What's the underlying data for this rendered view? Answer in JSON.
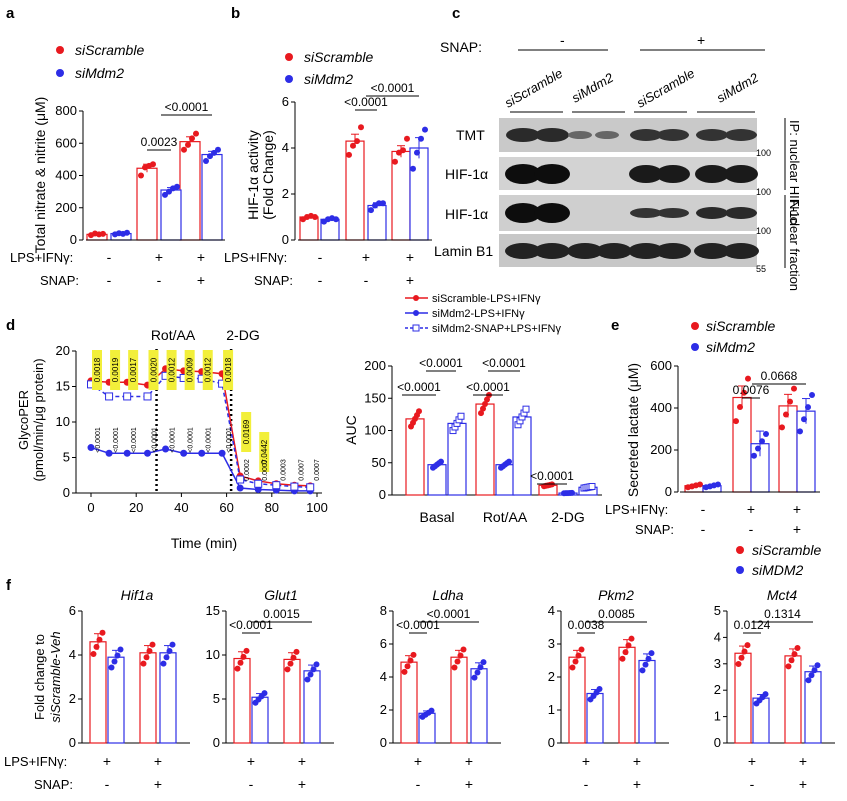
{
  "panels": {
    "a": "a",
    "b": "b",
    "c": "c",
    "d": "d",
    "e": "e",
    "f": "f"
  },
  "colors": {
    "scramble": "#e8191f",
    "mdm2": "#2d2de6",
    "grid": "#000000",
    "highlight": "#f2ef3a"
  },
  "groups": {
    "lps": "LPS+IFNγ:",
    "snap": "SNAP:",
    "plus": "+",
    "minus": "-"
  },
  "legend": {
    "scramble": "siScramble",
    "mdm2": "siMdm2",
    "mdm2_upper": "siMDM2"
  },
  "chart_data": [
    {
      "panel": "a",
      "type": "bar",
      "ylabel": "Total nitrate & nitrite (μM)",
      "ylim": [
        0,
        800
      ],
      "yticks": [
        0,
        200,
        400,
        600,
        800
      ],
      "lps": [
        "-",
        "+",
        "+"
      ],
      "snap": [
        "-",
        "-",
        "+"
      ],
      "series": [
        {
          "name": "siScramble",
          "values": [
            35,
            445,
            610
          ],
          "errors": [
            8,
            25,
            30
          ],
          "points": [
            [
              30,
              40,
              35,
              38
            ],
            [
              400,
              450,
              460,
              470
            ],
            [
              560,
              590,
              630,
              660
            ]
          ]
        },
        {
          "name": "siMdm2",
          "values": [
            40,
            310,
            530
          ],
          "errors": [
            6,
            15,
            20
          ],
          "points": [
            [
              35,
              42,
              38,
              45
            ],
            [
              280,
              300,
              320,
              330
            ],
            [
              490,
              520,
              540,
              560
            ]
          ]
        }
      ],
      "sig": [
        {
          "label": "0.0023"
        },
        {
          "label": "<0.0001"
        }
      ]
    },
    {
      "panel": "b",
      "type": "bar",
      "ylabel": "HIF-1α activity\n(Fold Change)",
      "ylim": [
        0,
        6
      ],
      "yticks": [
        0,
        2,
        4,
        6
      ],
      "lps": [
        "-",
        "+",
        "+"
      ],
      "snap": [
        "-",
        "-",
        "+"
      ],
      "series": [
        {
          "name": "siScramble",
          "values": [
            1.0,
            4.3,
            3.85
          ],
          "errors": [
            0.08,
            0.3,
            0.25
          ],
          "points": [
            [
              0.9,
              1.0,
              1.05,
              1.0
            ],
            [
              3.7,
              4.1,
              4.3,
              4.9
            ],
            [
              3.4,
              3.8,
              3.9,
              4.4
            ]
          ]
        },
        {
          "name": "siMdm2",
          "values": [
            0.9,
            1.5,
            4.0
          ],
          "errors": [
            0.05,
            0.12,
            0.45
          ],
          "points": [
            [
              0.8,
              0.9,
              0.95,
              0.9
            ],
            [
              1.3,
              1.5,
              1.6,
              1.6
            ],
            [
              3.1,
              3.8,
              4.4,
              4.8
            ]
          ]
        }
      ],
      "sig": [
        {
          "label": "<0.0001"
        },
        {
          "label": "<0.0001"
        }
      ]
    },
    {
      "panel": "d",
      "type": "line",
      "title_marks": [
        "Rot/AA",
        "2-DG"
      ],
      "xlabel": "Time (min)",
      "ylabel": "GlycoPER\n(pmol/min/μg protein)",
      "xlim": [
        -5,
        100
      ],
      "ylim": [
        0,
        20
      ],
      "xticks": [
        0,
        20,
        40,
        60,
        80,
        100
      ],
      "yticks": [
        0,
        5,
        10,
        15,
        20
      ],
      "x": [
        0,
        8,
        16,
        25,
        33,
        41,
        49,
        58,
        66,
        74,
        82,
        90,
        97
      ],
      "series": [
        {
          "name": "siScramble-LPS+IFNγ",
          "values": [
            15.8,
            15.6,
            15.6,
            15.2,
            17.5,
            17.2,
            17.1,
            16.8,
            2.4,
            1.7,
            1.3,
            1.1,
            1.0
          ]
        },
        {
          "name": "siMdm2-LPS+IFNγ",
          "values": [
            6.4,
            5.6,
            5.6,
            5.6,
            6.2,
            5.6,
            5.6,
            5.6,
            0.7,
            0.5,
            0.4,
            0.3,
            0.3
          ]
        },
        {
          "name": "siMdm2-SNAP+LPS+IFNγ",
          "values": [
            15.3,
            13.6,
            13.6,
            13.6,
            16.5,
            16.2,
            16.1,
            15.4,
            1.9,
            1.3,
            1.1,
            0.9,
            0.8
          ]
        }
      ],
      "pvals_top": [
        "0.0018",
        "0.0019",
        "0.0017",
        "0.0020",
        "0.0012",
        "0.0009",
        "0.0012",
        "0.0018",
        "0.0169",
        "0.0442"
      ],
      "pvals_bottom": [
        "<0.0001",
        "<0.0001",
        "<0.0001",
        "<0.0001",
        "<0.0001",
        "<0.0001",
        "<0.0001",
        "<0.0001",
        "0.0002",
        "0.0007",
        "0.0003",
        "0.0007",
        "0.0007"
      ]
    },
    {
      "panel": "d-auc",
      "type": "bar",
      "ylabel": "AUC",
      "ylim": [
        0,
        200
      ],
      "yticks": [
        0,
        50,
        100,
        150,
        200
      ],
      "categories": [
        "Basal",
        "Rot/AA",
        "2-DG"
      ],
      "series": [
        {
          "name": "siScramble-LPS+IFNγ",
          "values": [
            118,
            141,
            15
          ]
        },
        {
          "name": "siMdm2-LPS+IFNγ",
          "values": [
            47,
            47,
            3
          ]
        },
        {
          "name": "siMdm2-SNAP+LPS+IFNγ",
          "values": [
            111,
            121,
            12
          ]
        }
      ],
      "sig": [
        "<0.0001",
        "<0.0001",
        "<0.0001",
        "<0.0001",
        "<0.0001"
      ]
    },
    {
      "panel": "e",
      "type": "bar",
      "ylabel": "Secreted lactate (μM)",
      "ylim": [
        0,
        600
      ],
      "yticks": [
        0,
        200,
        400,
        600
      ],
      "lps": [
        "-",
        "+",
        "+"
      ],
      "snap": [
        "-",
        "-",
        "+"
      ],
      "series": [
        {
          "name": "siScramble",
          "values": [
            30,
            450,
            410
          ],
          "errors": [
            5,
            55,
            55
          ]
        },
        {
          "name": "siMdm2",
          "values": [
            30,
            230,
            385
          ],
          "errors": [
            5,
            60,
            60
          ]
        }
      ],
      "sig": [
        {
          "label": "0.0076"
        },
        {
          "label": "0.0668"
        }
      ]
    },
    {
      "panel": "f",
      "type": "bar",
      "ylabel": "Fold change to\nsiScramble-Veh",
      "subplots": [
        {
          "gene": "Hif1a",
          "ylim": [
            0,
            6
          ],
          "yticks": [
            0,
            2,
            4,
            6
          ],
          "siScramble": [
            4.6,
            4.1
          ],
          "siMdm2": [
            3.9,
            4.1
          ],
          "sig": []
        },
        {
          "gene": "Glut1",
          "ylim": [
            0,
            15
          ],
          "yticks": [
            0,
            5,
            10,
            15
          ],
          "siScramble": [
            9.6,
            9.5
          ],
          "siMdm2": [
            5.2,
            8.2
          ],
          "sig": [
            "<0.0001",
            "0.0015"
          ]
        },
        {
          "gene": "Ldha",
          "ylim": [
            0,
            8
          ],
          "yticks": [
            0,
            2,
            4,
            6,
            8
          ],
          "siScramble": [
            4.9,
            5.2
          ],
          "siMdm2": [
            1.8,
            4.5
          ],
          "sig": [
            "<0.0001",
            "<0.0001"
          ]
        },
        {
          "gene": "Pkm2",
          "ylim": [
            0,
            4
          ],
          "yticks": [
            0,
            1,
            2,
            3,
            4
          ],
          "siScramble": [
            2.6,
            2.9
          ],
          "siMdm2": [
            1.5,
            2.5
          ],
          "sig": [
            "0.0038",
            "0.0085"
          ]
        },
        {
          "gene": "Mct4",
          "ylim": [
            0,
            5
          ],
          "yticks": [
            0,
            1,
            2,
            3,
            4,
            5
          ],
          "siScramble": [
            3.4,
            3.3
          ],
          "siMdm2": [
            1.7,
            2.7
          ],
          "sig": [
            "0.0124",
            "0.1314"
          ]
        }
      ]
    }
  ],
  "blot": {
    "snap_label": "SNAP:",
    "snap_minus": "-",
    "snap_plus": "+",
    "lanes": [
      "siScramble",
      "siMdm2",
      "siScramble",
      "siMdm2"
    ],
    "rows": [
      "TMT",
      "HIF-1α",
      "HIF-1α",
      "Lamin B1"
    ],
    "markers": [
      "100",
      "100",
      "100",
      "55"
    ],
    "side": [
      "IP: nuclear HIF-1α",
      "Nuclear fraction"
    ]
  }
}
